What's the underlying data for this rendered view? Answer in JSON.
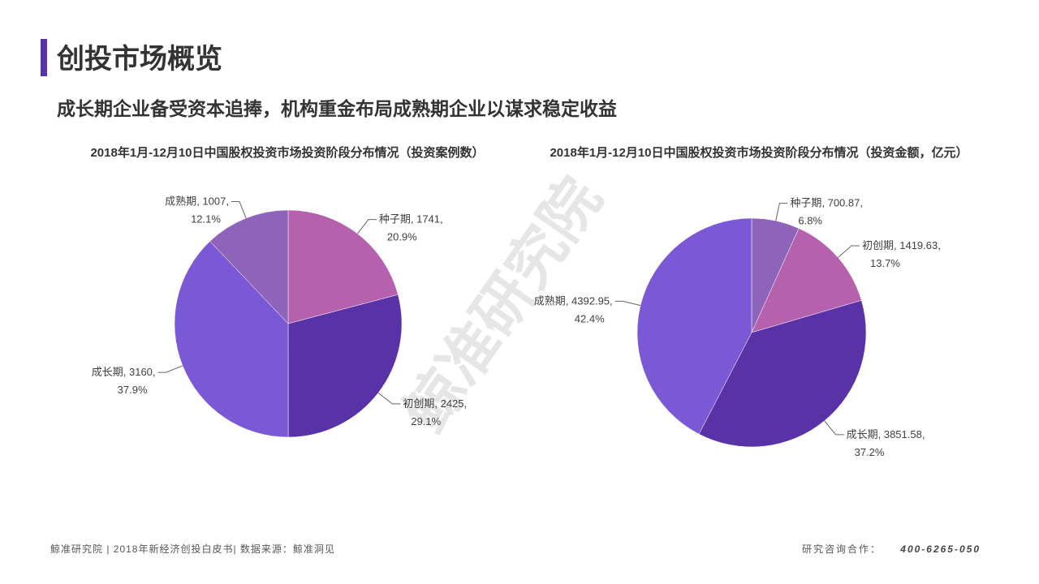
{
  "page": {
    "title": "创投市场概览",
    "subtitle": "成长期企业备受资本追捧，机构重金布局成熟期企业以谋求稳定收益",
    "watermark": "鲸准研究院",
    "footer_left": "鲸准研究院 | 2018年新经济创投白皮书| 数据来源：鲸准洞见",
    "footer_right_label": "研究咨询合作：",
    "footer_right_phone": "400-6265-050"
  },
  "chart_data": [
    {
      "type": "pie",
      "title": "2018年1月-12月10日中国股权投资市场投资阶段分布情况（投资案例数）",
      "categories": [
        "种子期",
        "初创期",
        "成长期",
        "成熟期"
      ],
      "values": [
        1741,
        2425,
        3160,
        1007
      ],
      "value_labels": [
        ", 1741,",
        ", 2425,",
        ", 3160,",
        ", 1007,"
      ],
      "percent_labels": [
        "20.9%",
        "29.1%",
        "37.9%",
        "12.1%"
      ],
      "colors": [
        "#b561ad",
        "#5a32a8",
        "#7b58d6",
        "#8e63ba"
      ]
    },
    {
      "type": "pie",
      "title": "2018年1月-12月10日中国股权投资市场投资阶段分布情况（投资金额，亿元）",
      "categories": [
        "种子期",
        "初创期",
        "成长期",
        "成熟期"
      ],
      "values": [
        700.87,
        1419.63,
        3851.58,
        4392.95
      ],
      "value_labels": [
        ", 700.87,",
        ", 1419.63,",
        ", 3851.58,",
        ", 4392.95,"
      ],
      "percent_labels": [
        "6.8%",
        "13.7%",
        "37.2%",
        "42.4%"
      ],
      "colors": [
        "#8e63ba",
        "#b561ad",
        "#5a32a8",
        "#7b58d6"
      ]
    }
  ]
}
